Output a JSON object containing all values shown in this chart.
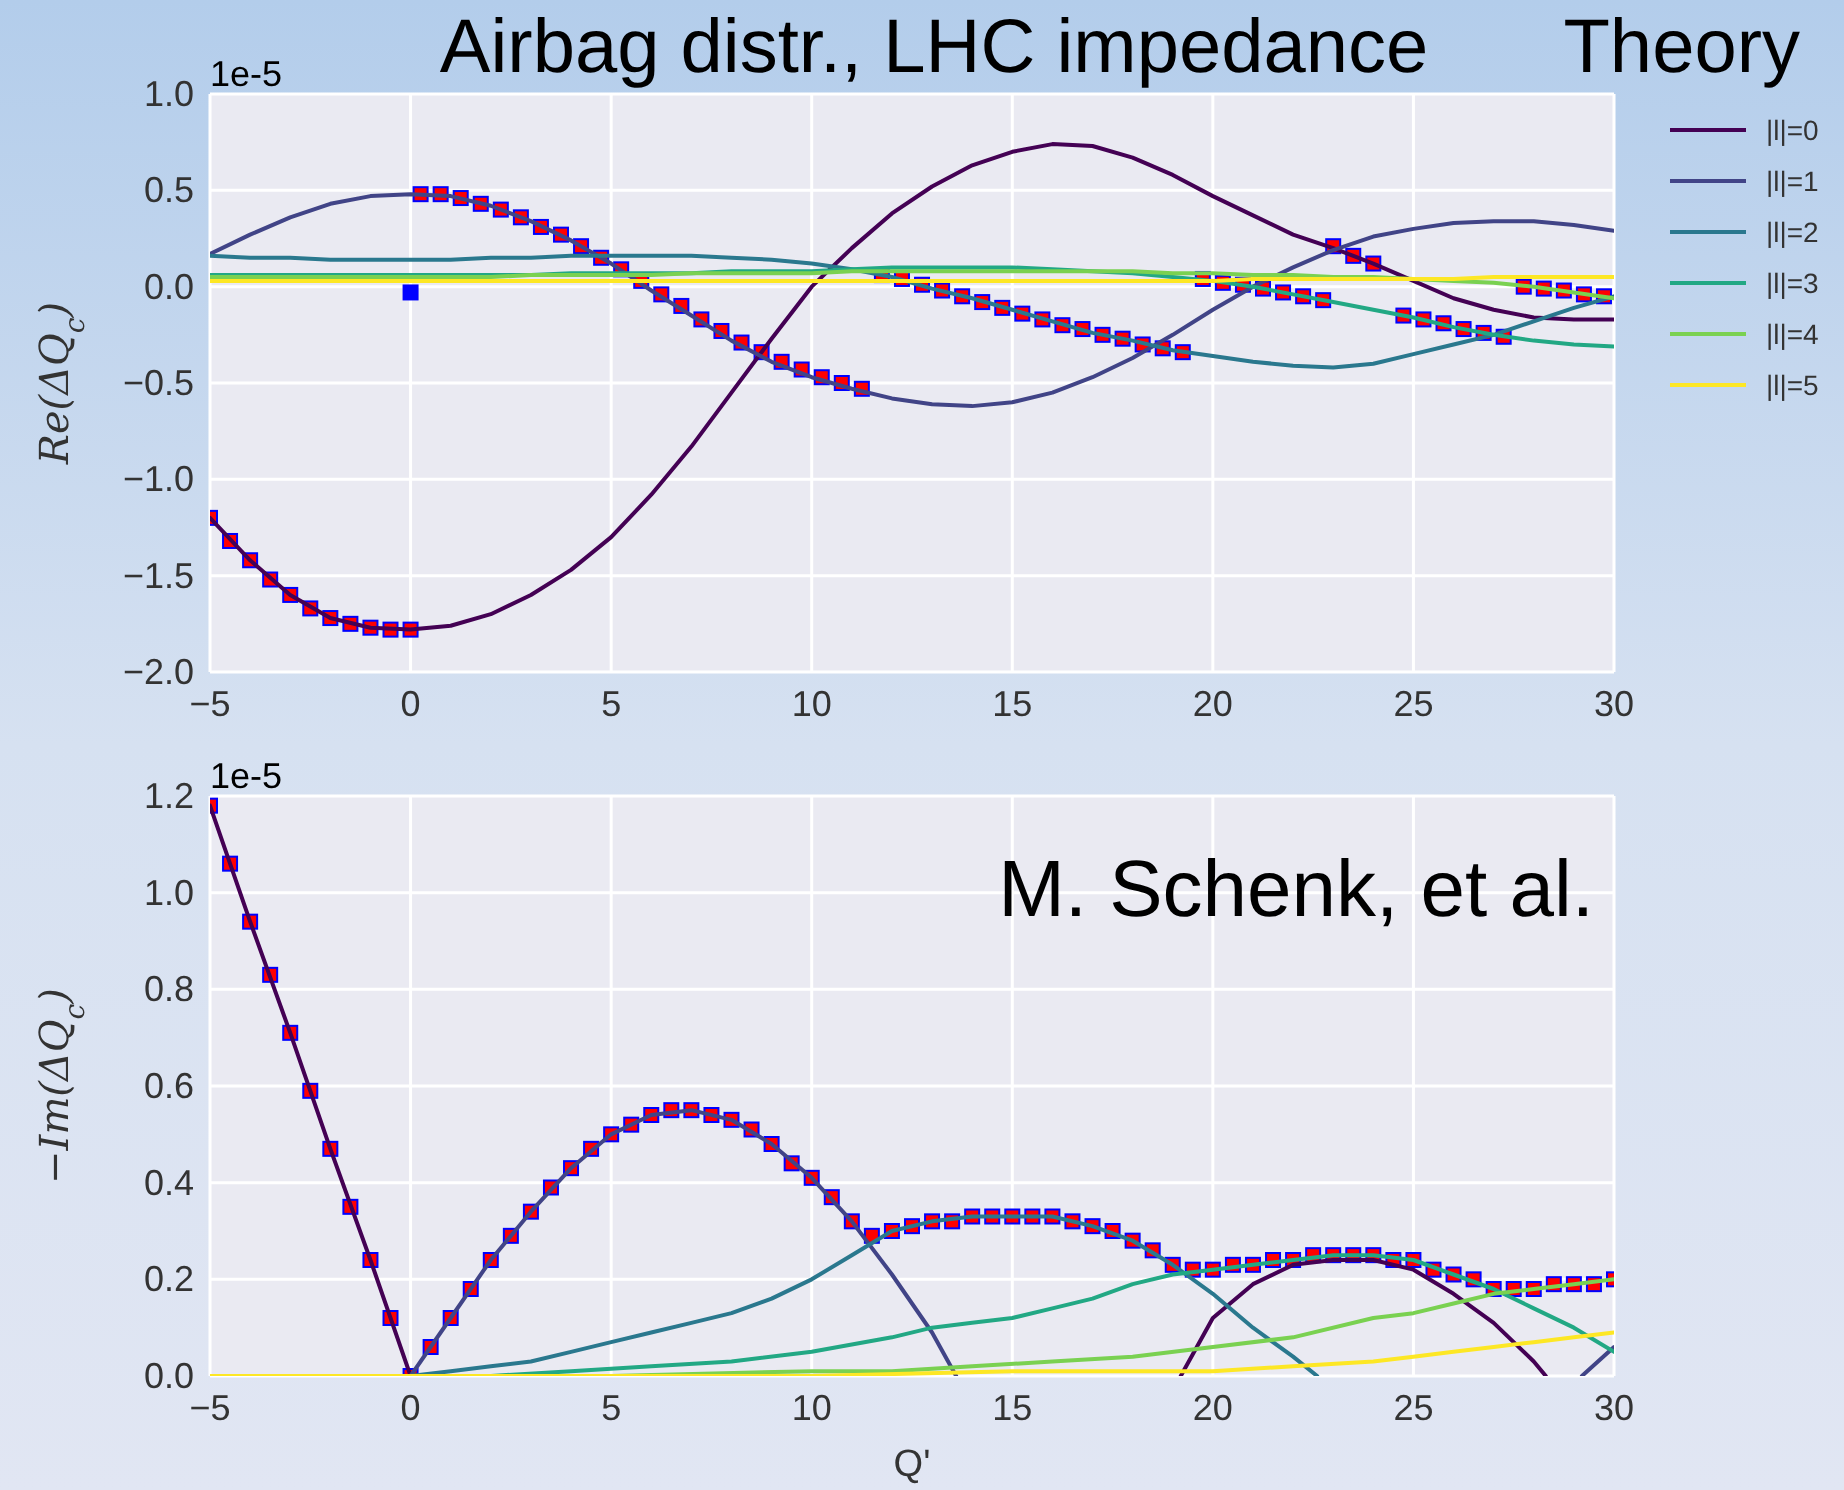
{
  "chart_data": [
    {
      "type": "line",
      "title": "Airbag distr., LHC impedance",
      "ylabel": "Re(ΔQ$_{c}$)",
      "annotations": [
        "1e-5",
        "Theory"
      ],
      "grid": true,
      "legend": "right",
      "marker": "none",
      "xlim": [
        -5,
        30
      ],
      "xticks": [
        {
          "value": -5,
          "label": "−5"
        },
        0,
        5,
        10,
        15,
        20,
        25,
        30
      ],
      "ylim": [
        -2,
        1
      ],
      "yticks": [
        {
          "value": -2,
          "label": "−2.0"
        },
        {
          "value": -1.5,
          "label": "−1.5"
        },
        {
          "value": -1,
          "label": "−1.0"
        },
        {
          "value": -0.5,
          "label": "−0.5"
        },
        {
          "value": 0,
          "label": "0.0"
        },
        0.5,
        {
          "value": 1,
          "label": "1.0"
        }
      ],
      "x": [
        -5,
        -4,
        -3,
        -2,
        -1,
        0,
        1,
        2,
        3,
        4,
        5,
        6,
        7,
        8,
        9,
        10,
        11,
        12,
        13,
        14,
        15,
        16,
        17,
        18,
        19,
        20,
        21,
        22,
        23,
        24,
        25,
        26,
        27,
        28,
        29,
        30
      ],
      "series": [
        {
          "name": "|l|=0",
          "color": "#440154",
          "values": [
            -1.2,
            -1.42,
            -1.6,
            -1.72,
            -1.77,
            -1.78,
            -1.76,
            -1.7,
            -1.6,
            -1.47,
            -1.3,
            -1.08,
            -0.83,
            -0.55,
            -0.27,
            0.0,
            0.2,
            0.38,
            0.52,
            0.63,
            0.7,
            0.74,
            0.73,
            0.67,
            0.58,
            0.47,
            0.37,
            0.27,
            0.2,
            0.12,
            0.03,
            -0.06,
            -0.12,
            -0.16,
            -0.17,
            -0.17
          ]
        },
        {
          "name": "|l|=1",
          "color": "#414487",
          "values": [
            0.17,
            0.27,
            0.36,
            0.43,
            0.47,
            0.48,
            0.47,
            0.42,
            0.34,
            0.24,
            0.12,
            -0.02,
            -0.15,
            -0.28,
            -0.39,
            -0.47,
            -0.53,
            -0.58,
            -0.61,
            -0.62,
            -0.6,
            -0.55,
            -0.47,
            -0.37,
            -0.25,
            -0.12,
            0.0,
            0.1,
            0.19,
            0.26,
            0.3,
            0.33,
            0.34,
            0.34,
            0.32,
            0.29
          ]
        },
        {
          "name": "|l|=2",
          "color": "#2a788e",
          "values": [
            0.16,
            0.15,
            0.15,
            0.14,
            0.14,
            0.14,
            0.14,
            0.15,
            0.15,
            0.16,
            0.16,
            0.16,
            0.16,
            0.15,
            0.14,
            0.12,
            0.09,
            0.05,
            -0.01,
            -0.06,
            -0.12,
            -0.18,
            -0.24,
            -0.28,
            -0.33,
            -0.36,
            -0.39,
            -0.41,
            -0.42,
            -0.4,
            -0.35,
            -0.3,
            -0.25,
            -0.18,
            -0.11,
            -0.05
          ]
        },
        {
          "name": "|l|=3",
          "color": "#22a884",
          "values": [
            0.06,
            0.06,
            0.06,
            0.06,
            0.06,
            0.06,
            0.06,
            0.06,
            0.06,
            0.07,
            0.07,
            0.07,
            0.07,
            0.08,
            0.08,
            0.08,
            0.09,
            0.1,
            0.1,
            0.1,
            0.1,
            0.09,
            0.08,
            0.07,
            0.05,
            0.03,
            0.0,
            -0.04,
            -0.08,
            -0.12,
            -0.16,
            -0.21,
            -0.25,
            -0.28,
            -0.3,
            -0.31
          ]
        },
        {
          "name": "|l|=4",
          "color": "#7ad151",
          "values": [
            0.05,
            0.05,
            0.05,
            0.05,
            0.05,
            0.05,
            0.05,
            0.05,
            0.06,
            0.06,
            0.06,
            0.06,
            0.07,
            0.07,
            0.07,
            0.07,
            0.08,
            0.08,
            0.08,
            0.08,
            0.08,
            0.08,
            0.08,
            0.08,
            0.07,
            0.07,
            0.06,
            0.06,
            0.05,
            0.05,
            0.04,
            0.03,
            0.02,
            0.0,
            -0.03,
            -0.06
          ]
        },
        {
          "name": "|l|=5",
          "color": "#fde725",
          "values": [
            0.03,
            0.03,
            0.03,
            0.03,
            0.03,
            0.03,
            0.03,
            0.03,
            0.03,
            0.03,
            0.03,
            0.03,
            0.03,
            0.03,
            0.03,
            0.03,
            0.03,
            0.03,
            0.03,
            0.03,
            0.03,
            0.03,
            0.03,
            0.03,
            0.03,
            0.03,
            0.04,
            0.04,
            0.04,
            0.04,
            0.04,
            0.04,
            0.05,
            0.05,
            0.05,
            0.05
          ]
        },
        {
          "type": "scatter",
          "marker": "square",
          "color": "#0000ff",
          "x": [
            -5,
            -4.5,
            -4,
            -3.5,
            -3,
            -2.5,
            -2,
            -1.5,
            -1,
            -0.5,
            0,
            0.25,
            0.75,
            1.25,
            1.75,
            2.25,
            2.75,
            3.25,
            3.75,
            4.25,
            4.75,
            5.25,
            5.75,
            6.25,
            6.75,
            7.25,
            7.75,
            8.25,
            8.75,
            9.25,
            9.75,
            10.25,
            10.75,
            11.25,
            11.75,
            12.25,
            12.75,
            13.25,
            13.75,
            14.25,
            14.75,
            15.25,
            15.75,
            16.25,
            16.75,
            17.25,
            17.75,
            18.25,
            18.75,
            19.25,
            19.75,
            20.25,
            20.75,
            21.25,
            21.75,
            22.25,
            22.75,
            23,
            23.5,
            24,
            24.75,
            25.25,
            25.75,
            26.25,
            26.75,
            27.25,
            27.75,
            28.25,
            28.75,
            29.25,
            29.75,
            0
          ],
          "values": [
            -1.2,
            -1.32,
            -1.42,
            -1.52,
            -1.6,
            -1.67,
            -1.72,
            -1.75,
            -1.77,
            -1.78,
            -1.78,
            0.48,
            0.48,
            0.46,
            0.43,
            0.4,
            0.36,
            0.31,
            0.27,
            0.21,
            0.15,
            0.09,
            0.03,
            -0.04,
            -0.1,
            -0.17,
            -0.23,
            -0.29,
            -0.34,
            -0.39,
            -0.43,
            -0.47,
            -0.5,
            -0.53,
            0.06,
            0.04,
            0.01,
            -0.02,
            -0.05,
            -0.08,
            -0.11,
            -0.14,
            -0.17,
            -0.2,
            -0.22,
            -0.25,
            -0.27,
            -0.3,
            -0.32,
            -0.34,
            0.04,
            0.02,
            0.01,
            -0.01,
            -0.03,
            -0.05,
            -0.07,
            0.21,
            0.16,
            0.12,
            -0.15,
            -0.17,
            -0.19,
            -0.22,
            -0.24,
            -0.26,
            0.0,
            -0.01,
            -0.02,
            -0.04,
            -0.05,
            -0.03
          ]
        },
        {
          "type": "scatter",
          "marker": "square",
          "color": "#ff0000",
          "x": [
            -5,
            -4.5,
            -4,
            -3.5,
            -3,
            -2.5,
            -2,
            -1.5,
            -1,
            -0.5,
            0,
            0.25,
            0.75,
            1.25,
            1.75,
            2.25,
            2.75,
            3.25,
            3.75,
            4.25,
            4.75,
            5.25,
            5.75,
            6.25,
            6.75,
            7.25,
            7.75,
            8.25,
            8.75,
            9.25,
            9.75,
            10.25,
            10.75,
            11.25,
            11.75,
            12.25,
            12.75,
            13.25,
            13.75,
            14.25,
            14.75,
            15.25,
            15.75,
            16.25,
            16.75,
            17.25,
            17.75,
            18.25,
            18.75,
            19.25,
            19.75,
            20.25,
            20.75,
            21.25,
            21.75,
            22.25,
            22.75,
            23,
            23.5,
            24,
            24.75,
            25.25,
            25.75,
            26.25,
            26.75,
            27.25,
            27.75,
            28.25,
            28.75,
            29.25,
            29.75
          ],
          "values": [
            -1.2,
            -1.32,
            -1.42,
            -1.52,
            -1.6,
            -1.67,
            -1.72,
            -1.75,
            -1.77,
            -1.78,
            -1.78,
            0.48,
            0.48,
            0.46,
            0.43,
            0.4,
            0.36,
            0.31,
            0.27,
            0.21,
            0.15,
            0.09,
            0.03,
            -0.04,
            -0.1,
            -0.17,
            -0.23,
            -0.29,
            -0.34,
            -0.39,
            -0.43,
            -0.47,
            -0.5,
            -0.53,
            0.06,
            0.04,
            0.01,
            -0.02,
            -0.05,
            -0.08,
            -0.11,
            -0.14,
            -0.17,
            -0.2,
            -0.22,
            -0.25,
            -0.27,
            -0.3,
            -0.32,
            -0.34,
            0.04,
            0.02,
            0.01,
            -0.01,
            -0.03,
            -0.05,
            -0.07,
            0.21,
            0.16,
            0.12,
            -0.15,
            -0.17,
            -0.19,
            -0.22,
            -0.24,
            -0.26,
            0.0,
            -0.01,
            -0.02,
            -0.04,
            -0.05
          ]
        }
      ]
    },
    {
      "type": "line",
      "xlabel": "Q'",
      "ylabel": "−Im(ΔQ$_{c}$)",
      "annotations": [
        "1e-5",
        "M. Schenk, et al."
      ],
      "grid": true,
      "marker": "none",
      "xlim": [
        -5,
        30
      ],
      "xticks": [
        {
          "value": -5,
          "label": "−5"
        },
        0,
        5,
        10,
        15,
        20,
        25,
        30
      ],
      "ylim": [
        0,
        1.2
      ],
      "yticks": [
        {
          "value": 0,
          "label": "0.0"
        },
        0.2,
        0.4,
        0.6,
        0.8,
        {
          "value": 1,
          "label": "1.0"
        },
        1.2
      ],
      "series": [
        {
          "color": "#440154",
          "x": [
            -5,
            -4,
            -3,
            -2,
            -1,
            0,
            10,
            19.2,
            20,
            21,
            22,
            23,
            24,
            25,
            26,
            27,
            28,
            28.3
          ],
          "values": [
            1.18,
            0.94,
            0.71,
            0.47,
            0.24,
            0,
            null,
            0,
            0.12,
            0.19,
            0.23,
            0.24,
            0.24,
            0.22,
            0.17,
            0.11,
            0.03,
            0
          ]
        },
        {
          "color": "#414487",
          "x": [
            0,
            1,
            2,
            3,
            4,
            5,
            6,
            7,
            8,
            9,
            10,
            11,
            12,
            13,
            13.6,
            20,
            29.2,
            30
          ],
          "values": [
            0,
            0.12,
            0.24,
            0.34,
            0.43,
            0.5,
            0.54,
            0.55,
            0.53,
            0.48,
            0.41,
            0.32,
            0.21,
            0.09,
            0,
            null,
            0,
            0.06
          ]
        },
        {
          "color": "#2a788e",
          "x": [
            -5,
            0,
            1,
            2,
            3,
            4,
            5,
            6,
            7,
            8,
            9,
            10,
            11,
            12,
            13,
            14,
            15,
            16,
            17,
            18,
            19,
            20,
            21,
            22,
            22.6
          ],
          "values": [
            0,
            0,
            0.01,
            0.02,
            0.03,
            0.05,
            0.07,
            0.09,
            0.11,
            0.13,
            0.16,
            0.2,
            0.25,
            0.3,
            0.32,
            0.33,
            0.33,
            0.33,
            0.31,
            0.28,
            0.23,
            0.17,
            0.1,
            0.04,
            0
          ]
        },
        {
          "color": "#22a884",
          "x": [
            -5,
            0,
            2,
            4,
            6,
            8,
            10,
            12,
            13,
            14,
            15,
            16,
            17,
            18,
            19,
            20,
            21,
            22,
            23,
            24,
            25,
            26,
            27,
            28,
            29,
            30
          ],
          "values": [
            0,
            0,
            0,
            0.01,
            0.02,
            0.03,
            0.05,
            0.08,
            0.1,
            0.11,
            0.12,
            0.14,
            0.16,
            0.19,
            0.21,
            0.22,
            0.23,
            0.24,
            0.25,
            0.25,
            0.24,
            0.21,
            0.18,
            0.14,
            0.1,
            0.05
          ]
        },
        {
          "color": "#7ad151",
          "x": [
            -5,
            0,
            5,
            10,
            12,
            14,
            16,
            18,
            20,
            22,
            24,
            25,
            26,
            27,
            28,
            29,
            30
          ],
          "values": [
            0,
            0,
            0,
            0.01,
            0.01,
            0.02,
            0.03,
            0.04,
            0.06,
            0.08,
            0.12,
            0.13,
            0.15,
            0.17,
            0.18,
            0.19,
            0.2
          ]
        },
        {
          "color": "#fde725",
          "x": [
            -5,
            0,
            10,
            15,
            18,
            20,
            22,
            24,
            25,
            26,
            27,
            28,
            29,
            30
          ],
          "values": [
            0,
            0,
            0,
            0.01,
            0.01,
            0.01,
            0.02,
            0.03,
            0.04,
            0.05,
            0.06,
            0.07,
            0.08,
            0.09
          ]
        },
        {
          "type": "scatter",
          "marker": "square",
          "color": "#0000ff",
          "x": [
            -5,
            -4.5,
            -4,
            -3.5,
            -3,
            -2.5,
            -2,
            -1.5,
            -1,
            -0.5,
            0,
            0.5,
            1,
            1.5,
            2,
            2.5,
            3,
            3.5,
            4,
            4.5,
            5,
            5.5,
            6,
            6.5,
            7,
            7.5,
            8,
            8.5,
            9,
            9.5,
            10,
            10.5,
            11,
            11.5,
            12,
            12.5,
            13,
            13.5,
            14,
            14.5,
            15,
            15.5,
            16,
            16.5,
            17,
            17.5,
            18,
            18.5,
            19,
            19.5,
            20,
            20.5,
            21,
            21.5,
            22,
            22.5,
            23,
            23.5,
            24,
            24.5,
            25,
            25.5,
            26,
            26.5,
            27,
            27.5,
            28,
            28.5,
            29,
            29.5,
            30
          ],
          "values": [
            1.18,
            1.06,
            0.94,
            0.83,
            0.71,
            0.59,
            0.47,
            0.35,
            0.24,
            0.12,
            0.0,
            0.06,
            0.12,
            0.18,
            0.24,
            0.29,
            0.34,
            0.39,
            0.43,
            0.47,
            0.5,
            0.52,
            0.54,
            0.55,
            0.55,
            0.54,
            0.53,
            0.51,
            0.48,
            0.44,
            0.41,
            0.37,
            0.32,
            0.29,
            0.3,
            0.31,
            0.32,
            0.32,
            0.33,
            0.33,
            0.33,
            0.33,
            0.33,
            0.32,
            0.31,
            0.3,
            0.28,
            0.26,
            0.23,
            0.22,
            0.22,
            0.23,
            0.23,
            0.24,
            0.24,
            0.25,
            0.25,
            0.25,
            0.25,
            0.24,
            0.24,
            0.22,
            0.21,
            0.2,
            0.18,
            0.18,
            0.18,
            0.19,
            0.19,
            0.19,
            0.2
          ]
        },
        {
          "type": "scatter",
          "marker": "square",
          "color": "#ff0000",
          "x": [
            -5,
            -4.5,
            -4,
            -3.5,
            -3,
            -2.5,
            -2,
            -1.5,
            -1,
            -0.5,
            0,
            0.5,
            1,
            1.5,
            2,
            2.5,
            3,
            3.5,
            4,
            4.5,
            5,
            5.5,
            6,
            6.5,
            7,
            7.5,
            8,
            8.5,
            9,
            9.5,
            10,
            10.5,
            11,
            11.5,
            12,
            12.5,
            13,
            13.5,
            14,
            14.5,
            15,
            15.5,
            16,
            16.5,
            17,
            17.5,
            18,
            18.5,
            19,
            19.5,
            20,
            20.5,
            21,
            21.5,
            22,
            22.5,
            23,
            23.5,
            24,
            24.5,
            25,
            25.5,
            26,
            26.5,
            27,
            27.5,
            28,
            28.5,
            29,
            29.5,
            30
          ],
          "values": [
            1.18,
            1.06,
            0.94,
            0.83,
            0.71,
            0.59,
            0.47,
            0.35,
            0.24,
            0.12,
            0.0,
            0.06,
            0.12,
            0.18,
            0.24,
            0.29,
            0.34,
            0.39,
            0.43,
            0.47,
            0.5,
            0.52,
            0.54,
            0.55,
            0.55,
            0.54,
            0.53,
            0.51,
            0.48,
            0.44,
            0.41,
            0.37,
            0.32,
            0.29,
            0.3,
            0.31,
            0.32,
            0.32,
            0.33,
            0.33,
            0.33,
            0.33,
            0.33,
            0.32,
            0.31,
            0.3,
            0.28,
            0.26,
            0.23,
            0.22,
            0.22,
            0.23,
            0.23,
            0.24,
            0.24,
            0.25,
            0.25,
            0.25,
            0.25,
            0.24,
            0.24,
            0.22,
            0.21,
            0.2,
            0.18,
            0.18,
            0.18,
            0.19,
            0.19,
            0.19,
            0.2
          ]
        }
      ]
    }
  ]
}
